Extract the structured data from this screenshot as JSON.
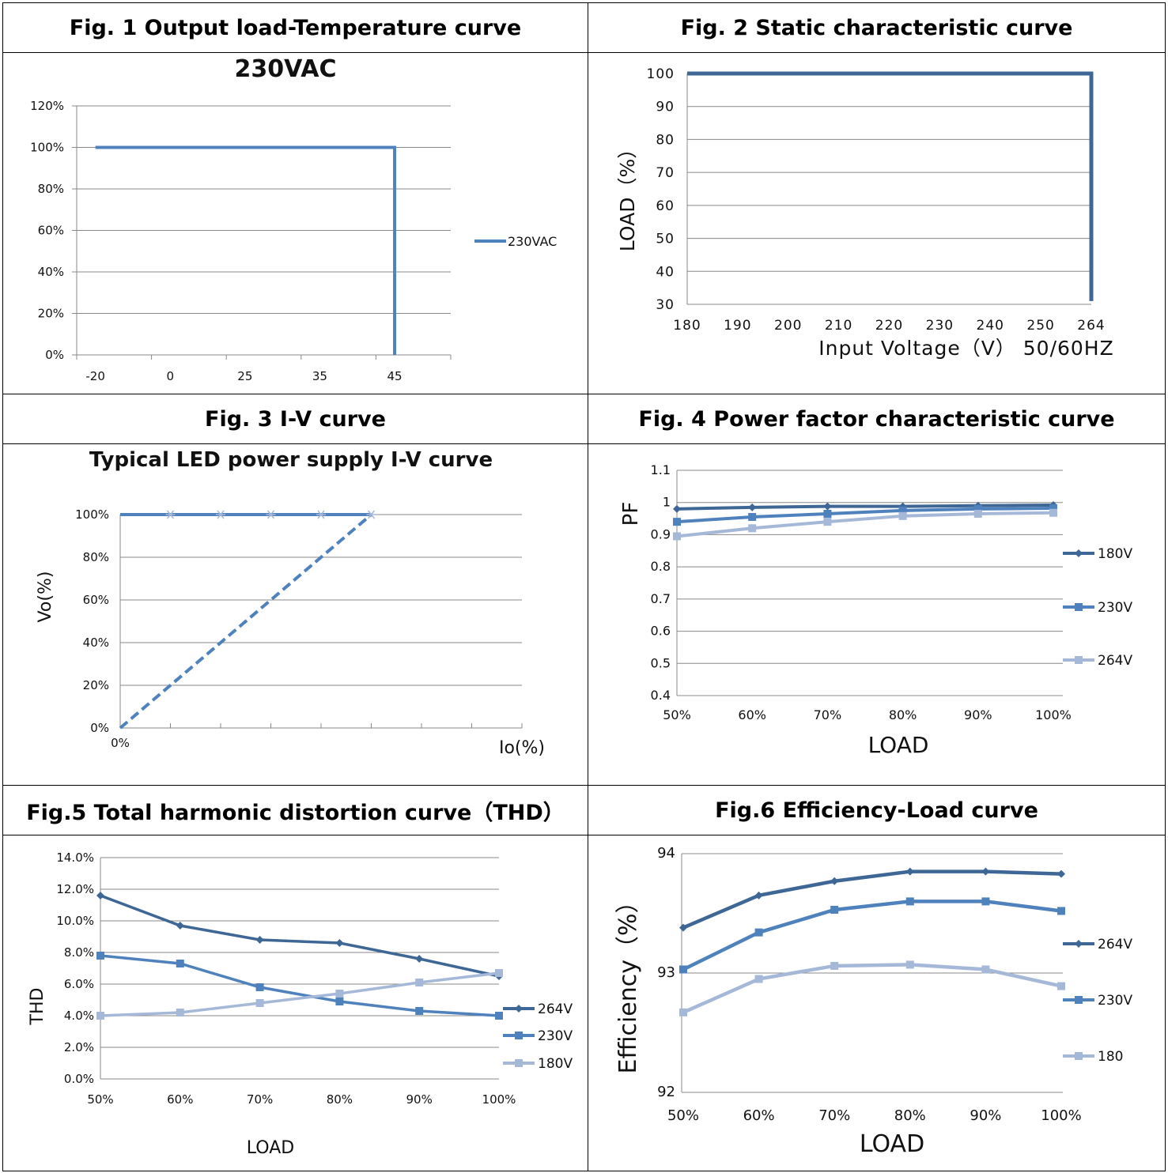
{
  "headers": {
    "fig1": "Fig. 1 Output load-Temperature curve",
    "fig2": "Fig. 2  Static characteristic curve",
    "fig3": "Fig. 3 I-V curve",
    "fig4": "Fig. 4 Power factor characteristic curve",
    "fig5": "Fig.5 Total harmonic distortion curve（THD）",
    "fig6": "Fig.6 Efficiency-Load curve"
  },
  "colors": {
    "dark": "#3f6796",
    "mid": "#4f81bd",
    "light": "#a6b8d8",
    "grid": "#888888"
  },
  "chart_data": [
    {
      "id": "fig1",
      "type": "line",
      "title": "230VAC",
      "categories": [
        "-20",
        "0",
        "25",
        "35",
        "45"
      ],
      "yticks": [
        "0%",
        "20%",
        "40%",
        "60%",
        "80%",
        "100%",
        "120%"
      ],
      "ylim": [
        0,
        120
      ],
      "series": [
        {
          "name": "230VAC",
          "points": [
            [
              "-20",
              100
            ],
            [
              "45",
              100
            ],
            [
              "45",
              0
            ]
          ]
        }
      ],
      "legend": "right"
    },
    {
      "id": "fig2",
      "type": "line",
      "xlabel": "Input Voltage（V） 50/60HZ",
      "ylabel": "LOAD（%）",
      "categories": [
        "180",
        "190",
        "200",
        "210",
        "220",
        "230",
        "240",
        "250",
        "264"
      ],
      "yticks": [
        "30",
        "40",
        "50",
        "60",
        "70",
        "80",
        "90",
        "100"
      ],
      "ylim": [
        30,
        100
      ],
      "series": [
        {
          "points": [
            [
              "180",
              100
            ],
            [
              "264",
              100
            ],
            [
              "264",
              31
            ]
          ]
        }
      ]
    },
    {
      "id": "fig3",
      "type": "line",
      "title": "Typical LED power supply I-V curve",
      "xlabel": "Io(%)",
      "ylabel": "Vo(%)",
      "xtick_first": "0%",
      "yticks": [
        "0%",
        "20%",
        "40%",
        "60%",
        "80%",
        "100%"
      ],
      "ylim": [
        0,
        100
      ],
      "x_slots": 8,
      "series": [
        {
          "style": "solid",
          "points": [
            [
              0,
              100
            ],
            [
              5,
              100
            ]
          ]
        },
        {
          "style": "dashed",
          "points": [
            [
              0,
              0
            ],
            [
              5,
              100
            ]
          ]
        }
      ],
      "markers_at_100": [
        1,
        2,
        3,
        4,
        5
      ]
    },
    {
      "id": "fig4",
      "type": "line",
      "xlabel": "LOAD",
      "ylabel": "PF",
      "categories": [
        "50%",
        "60%",
        "70%",
        "80%",
        "90%",
        "100%"
      ],
      "yticks": [
        "0.4",
        "0.5",
        "0.6",
        "0.7",
        "0.8",
        "0.9",
        "1",
        "1.1"
      ],
      "ylim": [
        0.4,
        1.1
      ],
      "legend": "right",
      "series": [
        {
          "name": "180V",
          "marker": "diamond",
          "color": "dark",
          "values": [
            0.98,
            0.985,
            0.988,
            0.988,
            0.99,
            0.992
          ]
        },
        {
          "name": "230V",
          "marker": "square",
          "color": "mid",
          "values": [
            0.94,
            0.955,
            0.965,
            0.975,
            0.98,
            0.982
          ]
        },
        {
          "name": "264V",
          "marker": "square",
          "color": "light",
          "values": [
            0.895,
            0.92,
            0.94,
            0.958,
            0.965,
            0.968
          ]
        }
      ]
    },
    {
      "id": "fig5",
      "type": "line",
      "xlabel": "LOAD",
      "ylabel": "THD",
      "categories": [
        "50%",
        "60%",
        "70%",
        "80%",
        "90%",
        "100%"
      ],
      "yticks": [
        "0.0%",
        "2.0%",
        "4.0%",
        "6.0%",
        "8.0%",
        "10.0%",
        "12.0%",
        "14.0%"
      ],
      "ylim": [
        0,
        14
      ],
      "legend": "right",
      "series": [
        {
          "name": "264V",
          "marker": "diamond",
          "color": "dark",
          "values": [
            11.6,
            9.7,
            8.8,
            8.6,
            7.6,
            6.5
          ]
        },
        {
          "name": "230V",
          "marker": "square",
          "color": "mid",
          "values": [
            7.8,
            7.3,
            5.8,
            4.9,
            4.3,
            4.0
          ]
        },
        {
          "name": "180V",
          "marker": "square",
          "color": "light",
          "values": [
            4.0,
            4.2,
            4.8,
            5.4,
            6.1,
            6.7
          ]
        }
      ]
    },
    {
      "id": "fig6",
      "type": "line",
      "xlabel": "LOAD",
      "ylabel": "Efficiency（%）",
      "categories": [
        "50%",
        "60%",
        "70%",
        "80%",
        "90%",
        "100%"
      ],
      "yticks": [
        "92",
        "93",
        "94"
      ],
      "ylim": [
        92,
        94
      ],
      "legend": "right",
      "series": [
        {
          "name": "264V",
          "marker": "diamond",
          "color": "dark",
          "values": [
            93.38,
            93.65,
            93.77,
            93.85,
            93.85,
            93.83
          ]
        },
        {
          "name": "230V",
          "marker": "square",
          "color": "mid",
          "values": [
            93.03,
            93.34,
            93.53,
            93.6,
            93.6,
            93.52
          ]
        },
        {
          "name": "180",
          "marker": "square",
          "color": "light",
          "values": [
            92.67,
            92.95,
            93.06,
            93.07,
            93.03,
            92.89
          ]
        }
      ]
    }
  ]
}
